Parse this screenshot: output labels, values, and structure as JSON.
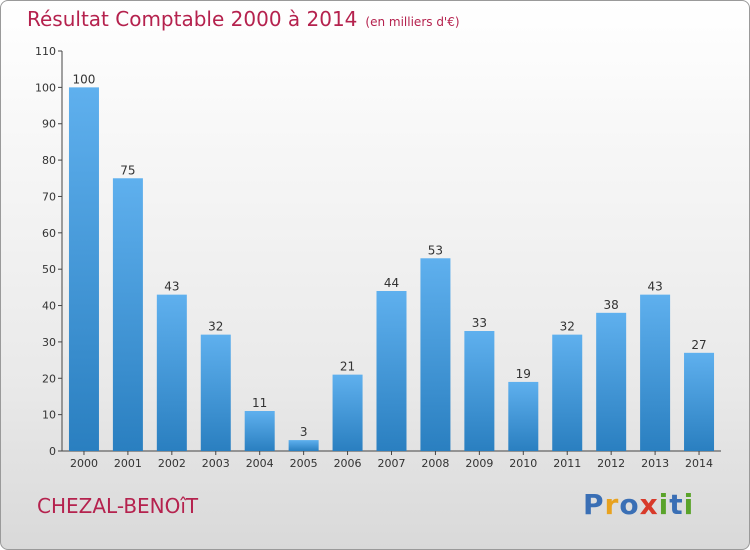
{
  "colors": {
    "title": "#b5224e",
    "bar_top": "#5fb0ee",
    "bar_bottom": "#2a7fc0",
    "axis": "#444444"
  },
  "chart_data": {
    "type": "bar",
    "title": "Résultat Comptable 2000 à 2014",
    "unit": "(en milliers d'€)",
    "subject": "CHEZAL-BENOîT",
    "brand": "Proxiti",
    "categories": [
      "2000",
      "2001",
      "2002",
      "2003",
      "2004",
      "2005",
      "2006",
      "2007",
      "2008",
      "2009",
      "2010",
      "2011",
      "2012",
      "2013",
      "2014"
    ],
    "values": [
      100,
      75,
      43,
      32,
      11,
      3,
      21,
      44,
      53,
      33,
      19,
      32,
      38,
      43,
      27
    ],
    "ylim": [
      0,
      110
    ],
    "yticks": [
      0,
      10,
      20,
      30,
      40,
      50,
      60,
      70,
      80,
      90,
      100,
      110
    ],
    "xlabel": "",
    "ylabel": "",
    "grid": false
  }
}
